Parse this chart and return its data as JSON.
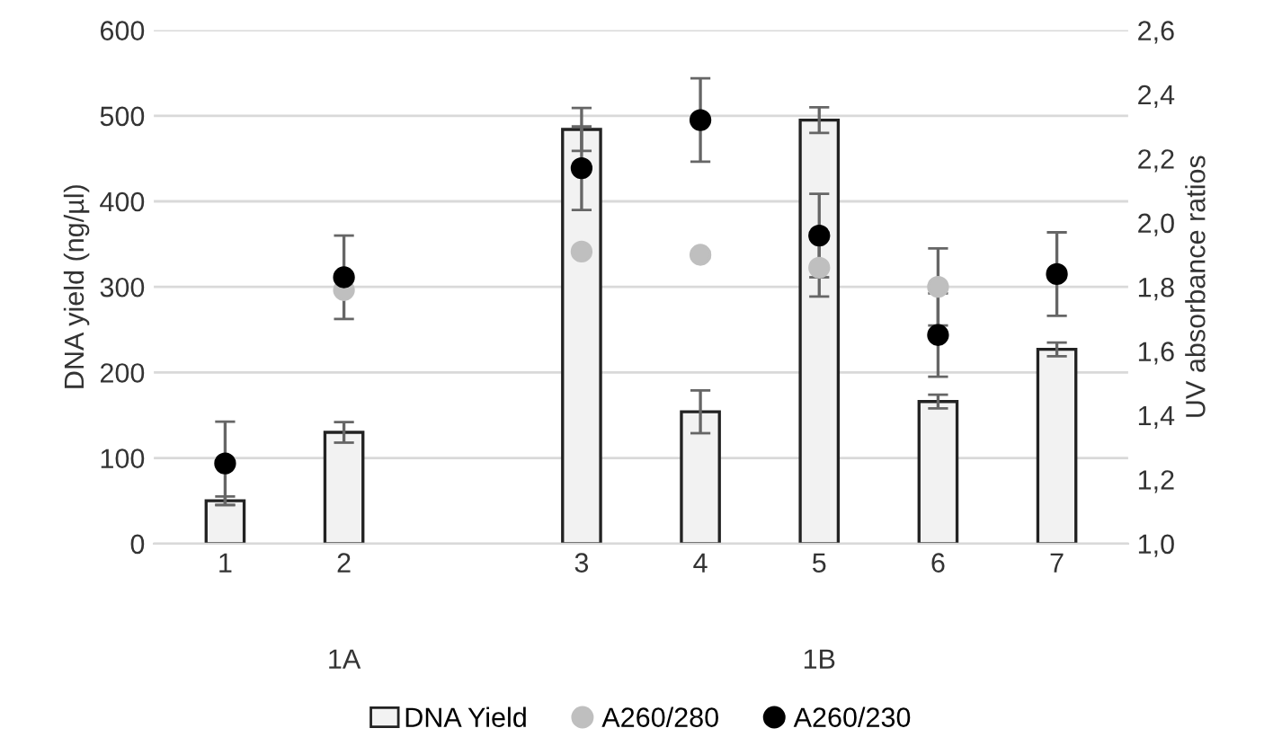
{
  "chart_data": {
    "type": "bar",
    "ylabel": "DNA yield (ng/µl)",
    "y2label": "UV absorbance ratios",
    "categories": [
      "1",
      "2",
      null,
      "3",
      "4",
      "5",
      "6",
      "7"
    ],
    "series": [
      {
        "name": "DNA Yield",
        "color": "#f2f2f2",
        "values": [
          50,
          130,
          null,
          484,
          154,
          495,
          166,
          227
        ],
        "errors": [
          5,
          12,
          null,
          25,
          25,
          15,
          8,
          8
        ]
      },
      {
        "name": "A260/280",
        "type": "scatter",
        "axis": "y2",
        "color": "#bfbfbf",
        "values": [
          null,
          1.79,
          null,
          1.91,
          1.9,
          1.86,
          1.8,
          null
        ],
        "errors": [
          null,
          null,
          null,
          null,
          0.01,
          0.09,
          0.12,
          null
        ]
      },
      {
        "name": "A260/230",
        "type": "scatter",
        "axis": "y2",
        "color": "#000000",
        "values": [
          1.25,
          1.83,
          null,
          2.17,
          2.32,
          1.96,
          1.65,
          1.84
        ],
        "errors": [
          0.13,
          0.13,
          null,
          0.13,
          0.13,
          0.13,
          0.13,
          0.13
        ]
      }
    ],
    "ylim": [
      0,
      600
    ],
    "yticks": [
      0,
      100,
      200,
      300,
      400,
      500,
      600
    ],
    "y2lim": [
      1.0,
      2.6
    ],
    "y2ticks": [
      {
        "value": 1.0,
        "label": "1,0"
      },
      {
        "value": 1.2,
        "label": "1,2"
      },
      {
        "value": 1.4,
        "label": "1,4"
      },
      {
        "value": 1.6,
        "label": "1,6"
      },
      {
        "value": 1.8,
        "label": "1,8"
      },
      {
        "value": 2.0,
        "label": "2,0"
      },
      {
        "value": 2.2,
        "label": "2,2"
      },
      {
        "value": 2.4,
        "label": "2,4"
      },
      {
        "value": 2.6,
        "label": "2,6"
      }
    ],
    "annotations": [
      "1A",
      "1B"
    ],
    "grid": "y",
    "legend": "bottom",
    "marker": "circle"
  }
}
